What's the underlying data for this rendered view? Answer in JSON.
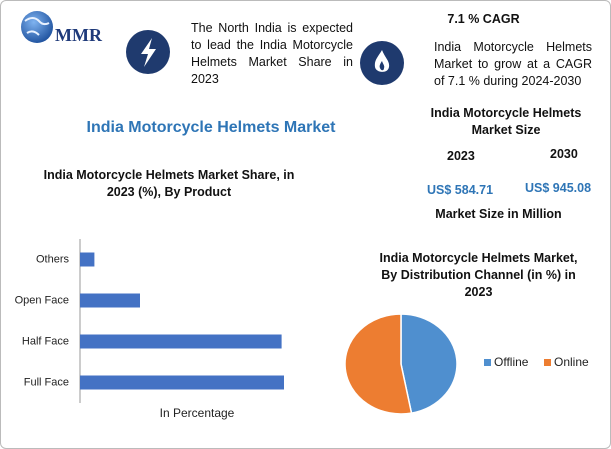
{
  "logo": "MMR",
  "highlights": [
    {
      "text": "The North India is expected to lead the India Motorcycle Helmets Market Share in 2023"
    },
    {
      "title": "7.1 % CAGR",
      "text": "India Motorcycle Helmets Market to grow at a CAGR of 7.1 % during 2024-2030"
    }
  ],
  "title": "India Motorcycle Helmets Market",
  "market_size": {
    "title": "India Motorcycle Helmets Market Size",
    "years": [
      "2023",
      "2030"
    ],
    "values": [
      "US$ 584.71",
      "US$ 945.08"
    ],
    "note": "Market Size in Million"
  },
  "chart_data": [
    {
      "type": "hbar",
      "title": "India Motorcycle Helmets Market Share, in 2023 (%), By Product",
      "categories": [
        "Others",
        "Open Face",
        "Half Face",
        "Full Face"
      ],
      "values": [
        3,
        12.5,
        42,
        42.5
      ],
      "color": "#4472c4",
      "x_label": "In Percentage",
      "xlim": [
        0,
        50
      ]
    },
    {
      "type": "pie",
      "title": "India Motorcycle Helmets Market, By Distribution Channel (in %) in 2023",
      "categories": [
        "Offline",
        "Online"
      ],
      "values": [
        47,
        53
      ],
      "colors": [
        "#4f8fcf",
        "#ed7d31"
      ]
    }
  ]
}
